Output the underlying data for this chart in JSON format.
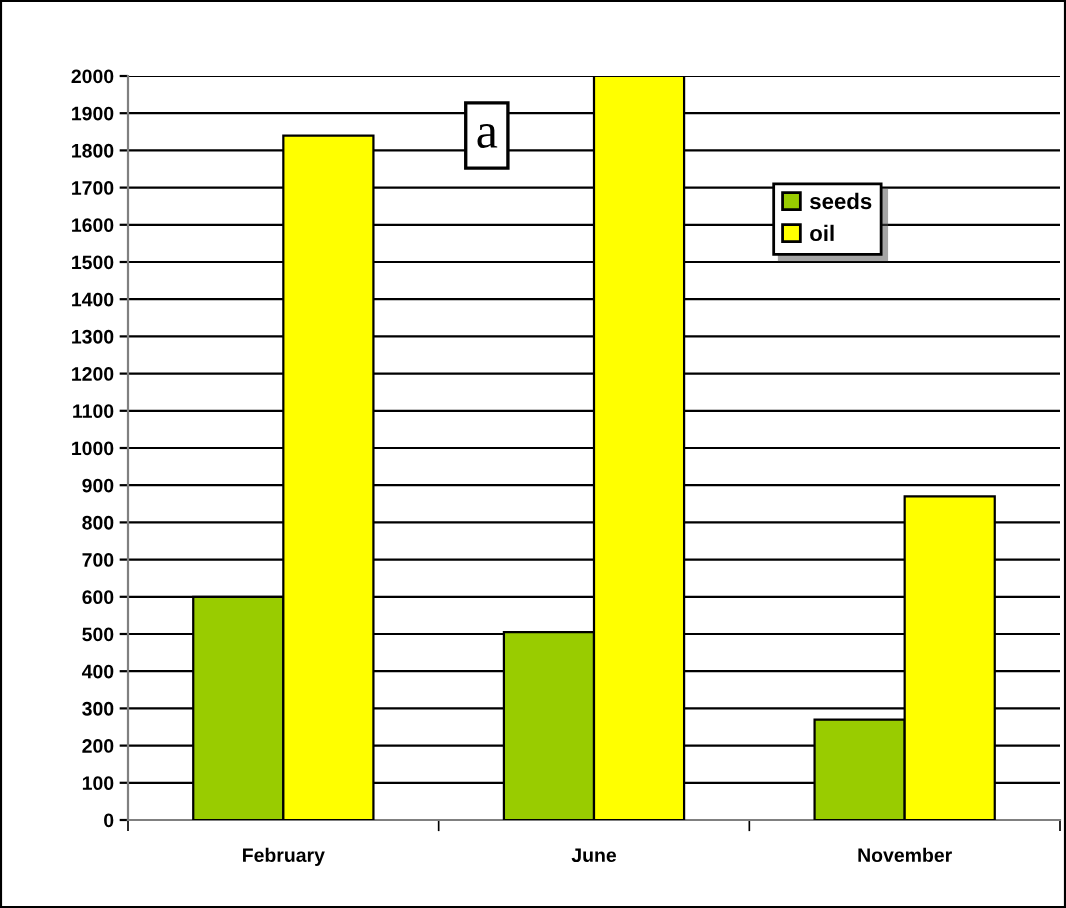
{
  "chart_data": {
    "type": "bar",
    "categories": [
      "February",
      "June",
      "November"
    ],
    "series": [
      {
        "name": "seeds",
        "color": "#99cc00",
        "values": [
          600,
          505,
          270
        ]
      },
      {
        "name": "oil",
        "color": "#ffff00",
        "values": [
          1840,
          2000,
          870
        ]
      }
    ],
    "ylim": [
      0,
      2000
    ],
    "yticks": [
      0,
      100,
      200,
      300,
      400,
      500,
      600,
      700,
      800,
      900,
      1000,
      1100,
      1200,
      1300,
      1400,
      1500,
      1600,
      1700,
      1800,
      1900,
      2000
    ],
    "grid": "y",
    "legend": "top right",
    "annotations": [
      "a"
    ]
  }
}
